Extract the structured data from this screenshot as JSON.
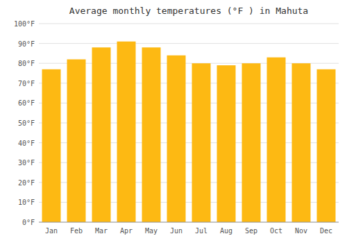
{
  "chart_data": {
    "type": "bar",
    "title": "Average monthly temperatures (°F ) in Mahuta",
    "categories": [
      "Jan",
      "Feb",
      "Mar",
      "Apr",
      "May",
      "Jun",
      "Jul",
      "Aug",
      "Sep",
      "Oct",
      "Nov",
      "Dec"
    ],
    "values": [
      77,
      82,
      88,
      91,
      88,
      84,
      80,
      79,
      80,
      83,
      80,
      77
    ],
    "color": "#FDB913",
    "ylim": [
      0,
      100
    ],
    "yticks": [
      {
        "value": 0,
        "label": "0°F"
      },
      {
        "value": 10,
        "label": "10°F"
      },
      {
        "value": 20,
        "label": "20°F"
      },
      {
        "value": 30,
        "label": "30°F"
      },
      {
        "value": 40,
        "label": "40°F"
      },
      {
        "value": 50,
        "label": "50°F"
      },
      {
        "value": 60,
        "label": "60°F"
      },
      {
        "value": 70,
        "label": "70°F"
      },
      {
        "value": 80,
        "label": "80°F"
      },
      {
        "value": 90,
        "label": "90°F"
      },
      {
        "value": 100,
        "label": "100°F"
      }
    ],
    "grid": true
  }
}
